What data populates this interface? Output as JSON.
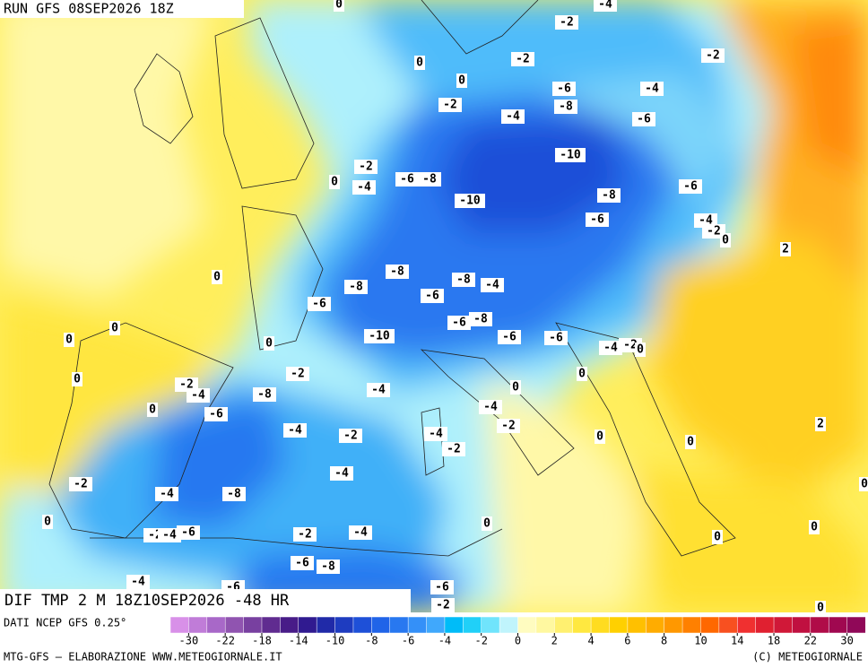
{
  "header": {
    "run": "RUN GFS 08SEP2026 18Z"
  },
  "map": {
    "title": "DIF TMP 2 M 18Z10SEP2026 -48 HR",
    "contour_labels": [
      0,
      -4,
      -2,
      0,
      -2,
      -2,
      0,
      -6,
      -4,
      -2,
      -4,
      -8,
      -6,
      -2,
      -10,
      0,
      -4,
      -6,
      -8,
      -6,
      -10,
      -8,
      -6,
      -4,
      -2,
      0,
      2,
      0,
      -8,
      -8,
      -8,
      -4,
      -6,
      -6,
      0,
      -6,
      -8,
      0,
      0,
      -10,
      -6,
      -6,
      -4,
      -2,
      0,
      -2,
      0,
      0,
      -2,
      -4,
      -8,
      -4,
      0,
      -4,
      0,
      -6,
      -4,
      -2,
      -2,
      -4,
      0,
      2,
      -2,
      0,
      -4,
      -2,
      -4,
      -8,
      0,
      0,
      -2,
      -4,
      -6,
      -2,
      -4,
      0,
      0,
      -6,
      -8,
      -4,
      -6,
      -6,
      -2,
      0,
      0
    ]
  },
  "legend": {
    "source": "DATI NCEP GFS 0.25°",
    "colors": [
      "#d890e8",
      "#c07cd8",
      "#a868c8",
      "#9054b0",
      "#7840a0",
      "#602c90",
      "#481c88",
      "#301a90",
      "#202aa8",
      "#1e3cc0",
      "#1e50d8",
      "#2064e8",
      "#2878f0",
      "#3490f8",
      "#40a8fc",
      "#00bcf8",
      "#20d0f8",
      "#70e4fc",
      "#c0f4fc",
      "#fffcc0",
      "#fff8a0",
      "#fff070",
      "#ffe840",
      "#ffdc20",
      "#ffd000",
      "#ffc000",
      "#ffac00",
      "#ff9800",
      "#ff8000",
      "#ff6800",
      "#f85020",
      "#f03030",
      "#e02030",
      "#d01838",
      "#c01040",
      "#b00c48",
      "#a00850",
      "#900858"
    ],
    "ticks": [
      -30,
      -22,
      -18,
      -14,
      -10,
      -8,
      -6,
      -4,
      -2,
      0,
      2,
      4,
      6,
      8,
      10,
      14,
      18,
      22,
      30
    ]
  },
  "footer": {
    "left": "MTG-GFS – ELABORAZIONE WWW.METEOGIORNALE.IT",
    "right": "(C) METEOGIORNALE"
  }
}
